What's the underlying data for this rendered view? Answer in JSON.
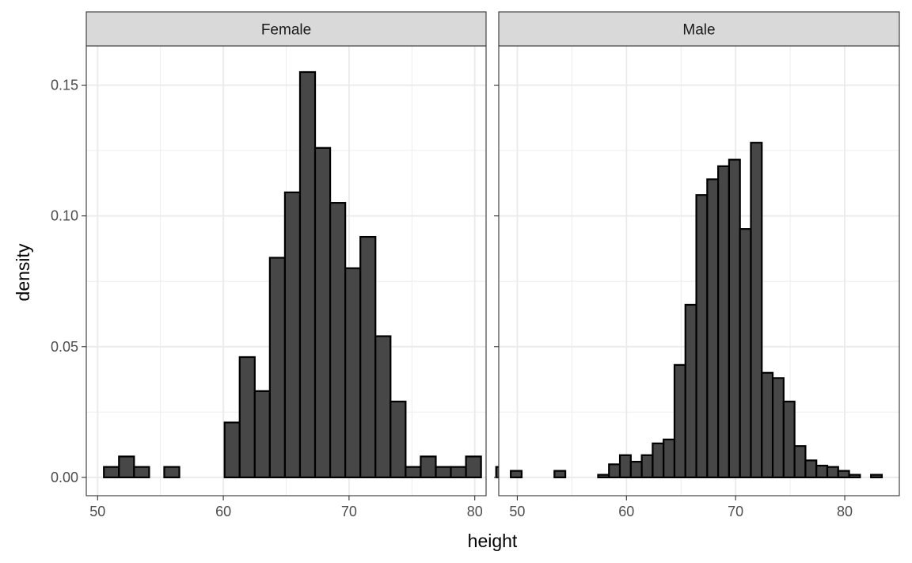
{
  "chart_data": {
    "type": "bar",
    "xlabel": "height",
    "ylabel": "density",
    "ylim": [
      -0.007,
      0.165
    ],
    "y_ticks": [
      0.0,
      0.05,
      0.1,
      0.15
    ],
    "y_tick_labels": [
      "0.00",
      "0.05",
      "0.10",
      "0.15"
    ],
    "x_ticks": [
      50,
      60,
      70,
      80
    ],
    "x_tick_labels": [
      "50",
      "60",
      "70",
      "80"
    ],
    "grid": true,
    "colors": {
      "bar_fill": "#474747",
      "bar_stroke": "#000000",
      "strip_fill": "#d9d9d9",
      "grid": "#ebebeb",
      "panel_border": "#333333"
    },
    "panels": [
      {
        "name": "Female",
        "xlim": [
          49.1,
          80.9
        ],
        "bin_start": 50.5,
        "bin_width": 1.2,
        "values": [
          0.004,
          0.008,
          0.004,
          0.0,
          0.004,
          0.0,
          0.0,
          0.0,
          0.021,
          0.046,
          0.033,
          0.084,
          0.109,
          0.155,
          0.126,
          0.105,
          0.08,
          0.092,
          0.054,
          0.029,
          0.004,
          0.008,
          0.004,
          0.004,
          0.008,
          0.0,
          0.004,
          0.0,
          0.008
        ]
      },
      {
        "name": "Male",
        "xlim": [
          48.3,
          85.0
        ],
        "bin_start": 49.4,
        "bin_width": 1.0,
        "values": [
          0.0025,
          0.0,
          0.0,
          0.0,
          0.0025,
          0.0,
          0.0,
          0.0,
          0.001,
          0.005,
          0.0085,
          0.006,
          0.0085,
          0.013,
          0.0145,
          0.043,
          0.066,
          0.108,
          0.114,
          0.119,
          0.1215,
          0.095,
          0.128,
          0.04,
          0.038,
          0.029,
          0.012,
          0.0065,
          0.0045,
          0.004,
          0.0025,
          0.001,
          0.0,
          0.001
        ]
      }
    ]
  }
}
